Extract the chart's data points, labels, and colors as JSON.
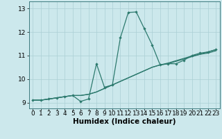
{
  "xlabel": "Humidex (Indice chaleur)",
  "bg_color": "#cce8ec",
  "line_color": "#2d7a6e",
  "grid_color": "#aacfd4",
  "xlim": [
    -0.5,
    23.5
  ],
  "ylim": [
    8.75,
    13.3
  ],
  "xticks": [
    0,
    1,
    2,
    3,
    4,
    5,
    6,
    7,
    8,
    9,
    10,
    11,
    12,
    13,
    14,
    15,
    16,
    17,
    18,
    19,
    20,
    21,
    22,
    23
  ],
  "yticks": [
    9,
    10,
    11,
    12,
    13
  ],
  "line1_x": [
    0,
    1,
    2,
    3,
    4,
    5,
    6,
    7,
    8,
    9,
    10,
    11,
    12,
    13,
    14,
    15,
    16,
    17,
    18,
    19,
    20,
    21,
    22,
    23
  ],
  "line1_y": [
    9.1,
    9.1,
    9.15,
    9.2,
    9.25,
    9.3,
    9.05,
    9.15,
    10.65,
    9.65,
    9.75,
    11.75,
    12.83,
    12.85,
    12.15,
    11.45,
    10.6,
    10.65,
    10.65,
    10.8,
    11.0,
    11.1,
    11.15,
    11.25
  ],
  "line2_x": [
    0,
    1,
    2,
    3,
    4,
    5,
    6,
    7,
    8,
    9,
    10,
    11,
    12,
    13,
    14,
    15,
    16,
    17,
    18,
    19,
    20,
    21,
    22,
    23
  ],
  "line2_y": [
    9.1,
    9.1,
    9.15,
    9.2,
    9.25,
    9.3,
    9.3,
    9.35,
    9.45,
    9.6,
    9.75,
    9.9,
    10.05,
    10.2,
    10.35,
    10.5,
    10.6,
    10.65,
    10.75,
    10.85,
    10.95,
    11.05,
    11.15,
    11.25
  ],
  "line3_x": [
    0,
    1,
    2,
    3,
    4,
    5,
    6,
    7,
    8,
    9,
    10,
    11,
    12,
    13,
    14,
    15,
    16,
    17,
    18,
    19,
    20,
    21,
    22,
    23
  ],
  "line3_y": [
    9.1,
    9.1,
    9.15,
    9.2,
    9.25,
    9.3,
    9.3,
    9.35,
    9.45,
    9.6,
    9.75,
    9.9,
    10.05,
    10.2,
    10.35,
    10.5,
    10.6,
    10.68,
    10.78,
    10.88,
    10.98,
    11.05,
    11.1,
    11.2
  ],
  "label_fontsize": 7.5,
  "tick_fontsize": 6.5
}
